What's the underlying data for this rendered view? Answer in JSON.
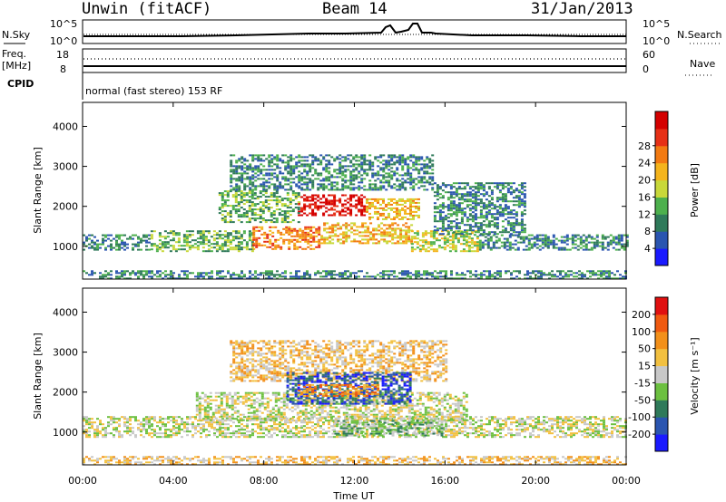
{
  "header": {
    "station": "Unwin (fitACF)",
    "beam": "Beam 14",
    "date": "31/Jan/2013"
  },
  "top_panels": {
    "nsky_label": "N.Sky",
    "nsky_top": "10^5",
    "nsky_bottom": "10^0",
    "nsearch_label": "N.Search",
    "nsearch_top": "10^5",
    "nsearch_bottom": "10^0",
    "freq_label": "Freq.",
    "freq_unit": "[MHz]",
    "freq_top": "18",
    "freq_bottom": "8",
    "nave_label": "Nave",
    "nave_top": "60",
    "nave_bottom": "0",
    "cpid_label": "CPID",
    "cpid_value": "normal (fast stereo) 153 RF"
  },
  "x_axis": {
    "label": "Time UT",
    "ticks": [
      "00:00",
      "04:00",
      "08:00",
      "12:00",
      "16:00",
      "20:00",
      "00:00"
    ]
  },
  "chart_data": [
    {
      "type": "heatmap",
      "name": "power",
      "ylabel": "Slant Range [km]",
      "yticks": [
        1000,
        2000,
        3000,
        4000
      ],
      "ylim": [
        180,
        4600
      ],
      "xlim_hours": [
        0,
        24
      ],
      "colorbar": {
        "label": "Power [dB]",
        "ticks": [
          "4",
          "8",
          "12",
          "16",
          "20",
          "24",
          "28"
        ],
        "colors": [
          "#1a1aff",
          "#2a55b0",
          "#2f7a5a",
          "#4db04d",
          "#c8d83a",
          "#f4b41c",
          "#f27a12",
          "#e63016",
          "#d40000"
        ]
      },
      "regions": [
        {
          "t": [
            0.0,
            3.0
          ],
          "r": [
            900,
            1300
          ],
          "level": 2
        },
        {
          "t": [
            3.0,
            7.5
          ],
          "r": [
            900,
            1400
          ],
          "level": 3
        },
        {
          "t": [
            7.5,
            10.5
          ],
          "r": [
            950,
            1500
          ],
          "level": 6
        },
        {
          "t": [
            10.5,
            14.5
          ],
          "r": [
            1100,
            1600
          ],
          "level": 5
        },
        {
          "t": [
            14.5,
            17.5
          ],
          "r": [
            900,
            1400
          ],
          "level": 4
        },
        {
          "t": [
            17.5,
            24.0
          ],
          "r": [
            900,
            1300
          ],
          "level": 2
        },
        {
          "t": [
            9.5,
            12.5
          ],
          "r": [
            1800,
            2300
          ],
          "level": 8
        },
        {
          "t": [
            12.5,
            14.8
          ],
          "r": [
            1700,
            2200
          ],
          "level": 5
        },
        {
          "t": [
            6.0,
            9.5
          ],
          "r": [
            1600,
            2400
          ],
          "level": 3
        },
        {
          "t": [
            6.5,
            15.5
          ],
          "r": [
            2400,
            3300
          ],
          "level": 2
        },
        {
          "t": [
            15.5,
            19.5
          ],
          "r": [
            1300,
            2600
          ],
          "level": 2
        },
        {
          "t": [
            0.0,
            24.0
          ],
          "r": [
            200,
            400
          ],
          "level": 2
        }
      ]
    },
    {
      "type": "heatmap",
      "name": "velocity",
      "ylabel": "Slant Range [km]",
      "yticks": [
        1000,
        2000,
        3000,
        4000
      ],
      "ylim": [
        180,
        4600
      ],
      "xlim_hours": [
        0,
        24
      ],
      "colorbar": {
        "label": "Velocity [m s⁻¹]",
        "ticks": [
          "200",
          "100",
          "50",
          "15",
          "-15",
          "-50",
          "-100",
          "-200"
        ],
        "colors": [
          "#1a1aff",
          "#2a55b0",
          "#2f7a5a",
          "#6cc040",
          "#c8c8c8",
          "#f2c040",
          "#f2901a",
          "#f05a10",
          "#e01010"
        ]
      },
      "regions": [
        {
          "t": [
            0.0,
            24.0
          ],
          "r": [
            900,
            1400
          ],
          "level": 4
        },
        {
          "t": [
            5.0,
            17.0
          ],
          "r": [
            1300,
            2000
          ],
          "level": 4
        },
        {
          "t": [
            6.5,
            16.0
          ],
          "r": [
            2300,
            3300
          ],
          "level": 5
        },
        {
          "t": [
            9.0,
            14.5
          ],
          "r": [
            1700,
            2500
          ],
          "level": 1
        },
        {
          "t": [
            9.5,
            13.0
          ],
          "r": [
            1900,
            2200
          ],
          "level": 6
        },
        {
          "t": [
            11.0,
            16.0
          ],
          "r": [
            900,
            1300
          ],
          "level": 3
        },
        {
          "t": [
            0.0,
            24.0
          ],
          "r": [
            200,
            400
          ],
          "level": 5
        }
      ]
    }
  ]
}
